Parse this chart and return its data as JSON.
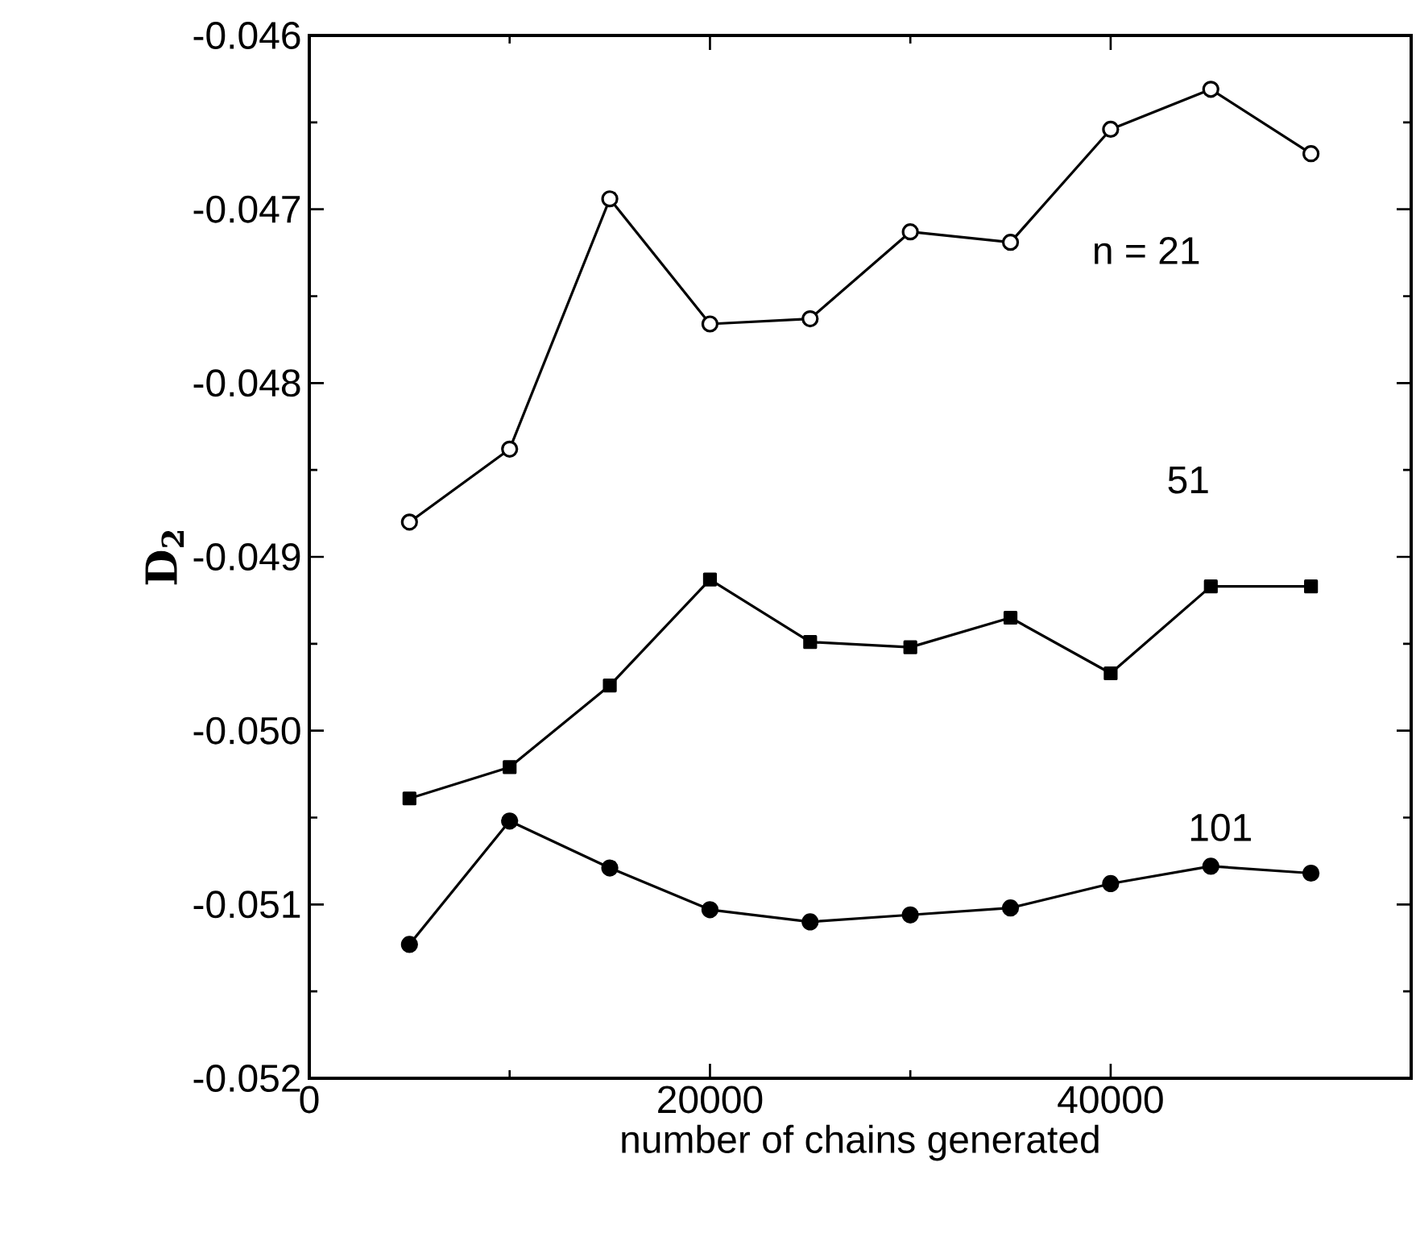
{
  "chart_data": {
    "type": "line",
    "xlabel": "number of chains generated",
    "ylabel": "**D$_{2}$**",
    "x": [
      5000,
      10000,
      15000,
      20000,
      25000,
      30000,
      35000,
      40000,
      45000,
      50000
    ],
    "series": [
      {
        "name": "n = 21",
        "color": "#000000",
        "marker": "circle",
        "values": [
          -0.0488,
          -0.04838,
          -0.04694,
          -0.04766,
          -0.04763,
          -0.04713,
          -0.04719,
          -0.04654,
          -0.04631,
          -0.04668
        ]
      },
      {
        "name": "51",
        "color": "#000000",
        "marker": "square",
        "values": [
          -0.05039,
          -0.05021,
          -0.04974,
          -0.04913,
          -0.04949,
          -0.04952,
          -0.04935,
          -0.04967,
          -0.04917,
          -0.04917
        ]
      },
      {
        "name": "101",
        "color": "#000000",
        "marker": "circle",
        "values": [
          -0.05123,
          -0.05052,
          -0.05079,
          -0.05103,
          -0.0511,
          -0.05106,
          -0.05102,
          -0.05088,
          -0.05078,
          -0.05082
        ]
      }
    ],
    "xlim": [
      0,
      55000
    ],
    "xticks": [
      0,
      20000,
      40000
    ],
    "ylim": [
      -0.052,
      -0.046
    ],
    "yticks": [
      -0.052,
      -0.051,
      {
        "value": -0.05,
        "label": "-0.050"
      },
      -0.049,
      -0.048,
      -0.047,
      -0.046
    ],
    "grid": false,
    "line_style": "solid"
  }
}
